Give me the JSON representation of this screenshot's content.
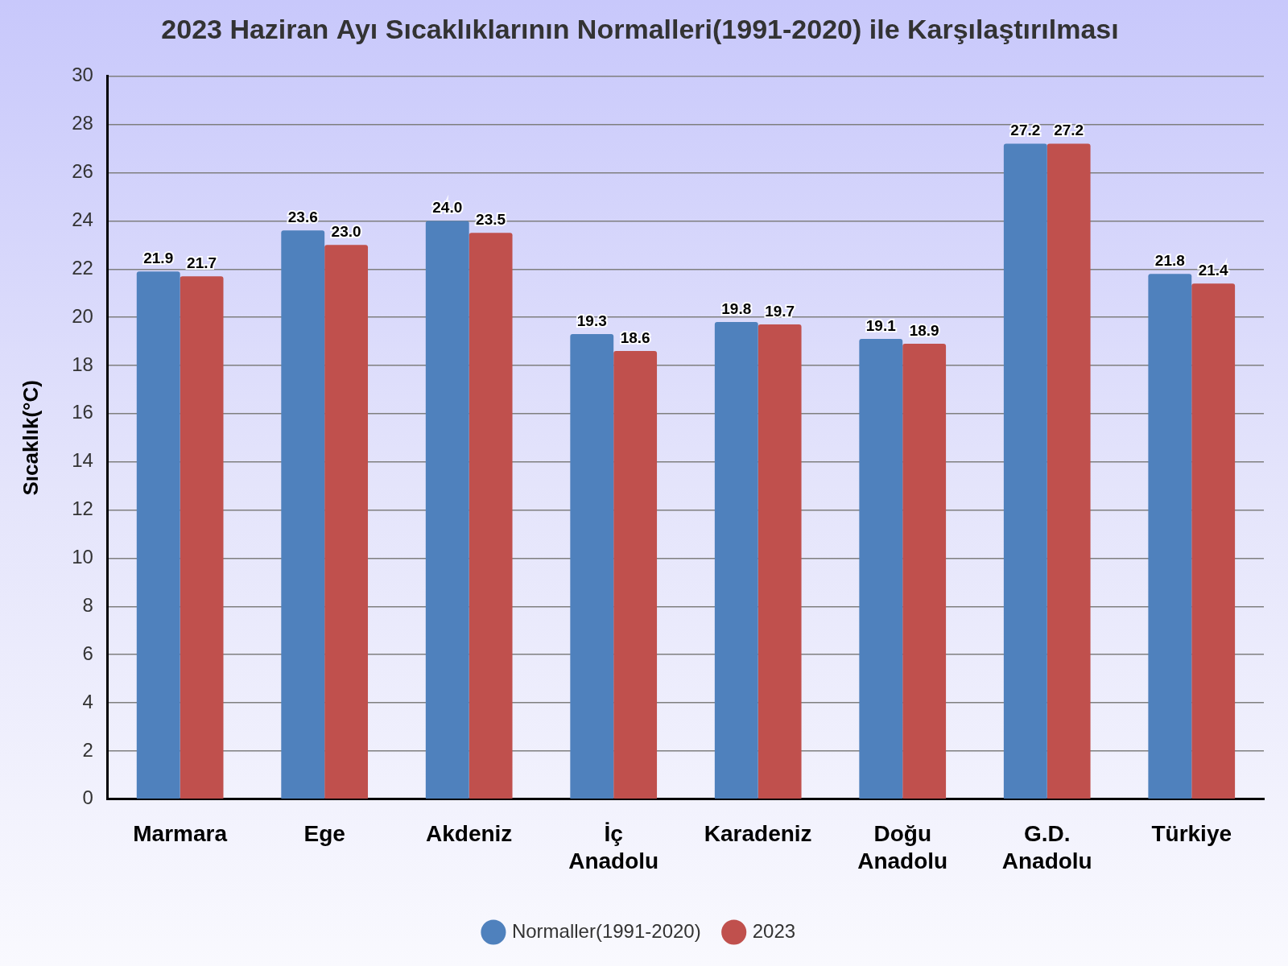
{
  "chart_data": {
    "type": "bar",
    "title": "2023 Haziran Ayı Sıcaklıklarının Normalleri(1991-2020) ile Karşılaştırılması",
    "y_label": "Sıcaklık(°C)",
    "categories": [
      "Marmara",
      "Ege",
      "Akdeniz",
      "İç Anadolu",
      "Karadeniz",
      "Doğu Anadolu",
      "G.D. Anadolu",
      "Türkiye"
    ],
    "series": [
      {
        "name": "Normaller(1991-2020)",
        "color": "#4f81bd",
        "values": [
          21.9,
          23.6,
          24.0,
          19.3,
          19.8,
          19.1,
          27.2,
          21.8
        ],
        "value_labels": [
          "21.9",
          "23.6",
          "24.0",
          "19.3",
          "19.8",
          "19.1",
          "27.2",
          "21.8"
        ]
      },
      {
        "name": "2023",
        "color": "#c0504d",
        "values": [
          21.7,
          23.0,
          23.5,
          18.6,
          19.7,
          18.9,
          27.2,
          21.4
        ],
        "value_labels": [
          "21.7",
          "23.0",
          "23.5",
          "18.6",
          "19.7",
          "18.9",
          "27.2",
          "21.4"
        ]
      }
    ],
    "ylim": [
      0,
      30
    ],
    "yticks": [
      0,
      2,
      4,
      6,
      8,
      10,
      12,
      14,
      16,
      18,
      20,
      22,
      24,
      26,
      28,
      30
    ],
    "grid": true,
    "legend": "bottom",
    "data_labels": true
  }
}
